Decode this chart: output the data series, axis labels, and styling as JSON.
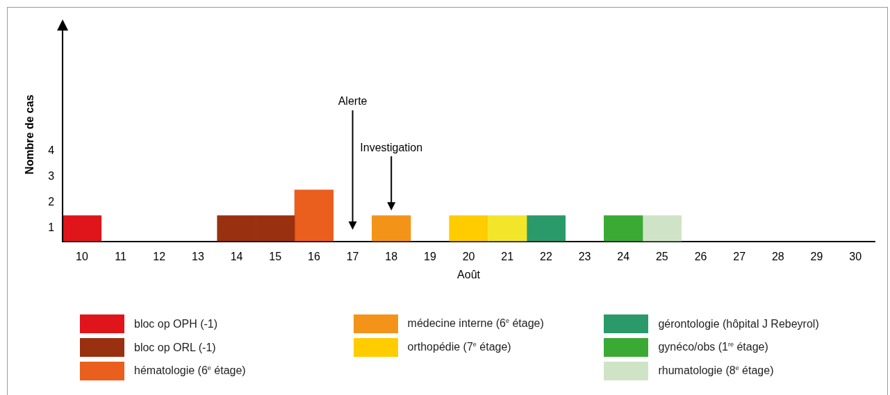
{
  "chart_data": {
    "type": "bar",
    "stacked": true,
    "xlabel": "Août",
    "ylabel": "Nombre de cas",
    "categories": [
      "10",
      "11",
      "12",
      "13",
      "14",
      "15",
      "16",
      "17",
      "18",
      "19",
      "20",
      "21",
      "22",
      "23",
      "24",
      "25",
      "26",
      "27",
      "28",
      "29",
      "30"
    ],
    "ylim": [
      0,
      8.3
    ],
    "yticks": [
      {
        "value": 0.5,
        "label": "1"
      },
      {
        "value": 1.5,
        "label": "2"
      },
      {
        "value": 2.5,
        "label": "3"
      },
      {
        "value": 3.5,
        "label": "4"
      }
    ],
    "grid": false,
    "legend": "bottom",
    "series": [
      {
        "name": "bloc op OPH (-1)",
        "color": "#e0141b",
        "values": [
          1,
          null,
          null,
          null,
          null,
          null,
          null,
          null,
          null,
          null,
          null,
          null,
          null,
          null,
          null,
          null,
          null,
          null,
          null,
          null,
          null
        ]
      },
      {
        "name": "bloc op ORL (-1)",
        "color": "#993010",
        "values": [
          null,
          null,
          null,
          null,
          1,
          1,
          null,
          null,
          null,
          null,
          null,
          null,
          null,
          null,
          null,
          null,
          null,
          null,
          null,
          null,
          null
        ]
      },
      {
        "name": "hématologie (6$^{e}$ étage)",
        "color": "#ea5e1e",
        "values": [
          null,
          null,
          null,
          null,
          null,
          null,
          2,
          null,
          null,
          null,
          null,
          null,
          null,
          null,
          null,
          null,
          null,
          null,
          null,
          null,
          null
        ]
      },
      {
        "name": "médecine interne (6$^{e}$ étage)",
        "color": "#f39419",
        "values": [
          null,
          null,
          null,
          null,
          null,
          null,
          null,
          null,
          1,
          null,
          null,
          null,
          null,
          null,
          null,
          null,
          null,
          null,
          null,
          null,
          null
        ]
      },
      {
        "name": "orthopédie (7$^{e}$ étage)",
        "color": "#ffcc00",
        "colors": [
          "#ffcc00",
          "#ffcc00",
          "#ffcc00",
          "#ffcc00",
          "#ffcc00",
          "#ffcc00",
          "#ffcc00",
          "#ffcc00",
          "#ffcc00",
          "#ffcc00",
          "#ffcc00",
          "#f3e62a",
          "#ffcc00",
          "#ffcc00",
          "#ffcc00",
          "#ffcc00",
          "#ffcc00",
          "#ffcc00",
          "#ffcc00",
          "#ffcc00",
          "#ffcc00"
        ],
        "values": [
          null,
          null,
          null,
          null,
          null,
          null,
          null,
          null,
          null,
          null,
          1,
          1,
          null,
          null,
          null,
          null,
          null,
          null,
          null,
          null,
          null
        ]
      },
      {
        "name": "gérontologie (hôpital J Rebeyrol)",
        "color": "#2a9a6b",
        "values": [
          null,
          null,
          null,
          null,
          null,
          null,
          null,
          null,
          null,
          null,
          null,
          null,
          1,
          null,
          null,
          null,
          null,
          null,
          null,
          null,
          null
        ]
      },
      {
        "name": "gynéco/obs (1$^{re}$ étage)",
        "color": "#3aaa35",
        "values": [
          null,
          null,
          null,
          null,
          null,
          null,
          null,
          null,
          null,
          null,
          null,
          null,
          null,
          null,
          1,
          null,
          null,
          null,
          null,
          null,
          null
        ]
      },
      {
        "name": "rhumatologie (8$^{e}$ étage)",
        "color": "#cfe4c6",
        "values": [
          null,
          null,
          null,
          null,
          null,
          null,
          null,
          null,
          null,
          null,
          null,
          null,
          null,
          null,
          null,
          1,
          null,
          null,
          null,
          null,
          null
        ]
      }
    ],
    "annotations": [
      "Alerte",
      "Investigation"
    ]
  }
}
